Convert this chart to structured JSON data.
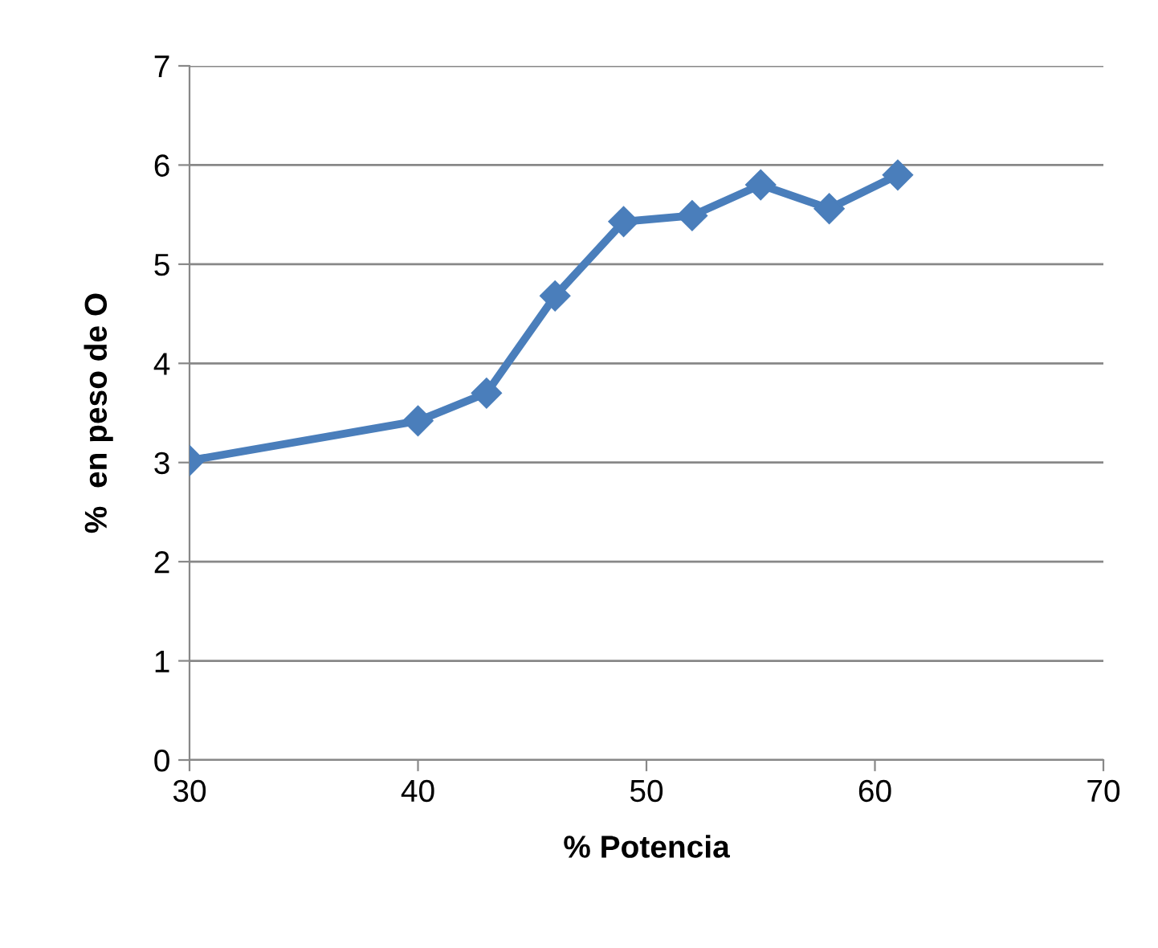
{
  "chart_data": {
    "type": "line",
    "xlabel": "% Potencia",
    "ylabel": "%  en peso de O",
    "series": [
      {
        "color": "#4a7ebb",
        "x": [
          30,
          40,
          43,
          46,
          49,
          52,
          55,
          58,
          61
        ],
        "values": [
          3.02,
          3.42,
          3.7,
          4.68,
          5.43,
          5.49,
          5.8,
          5.56,
          5.9
        ]
      }
    ],
    "xlim": [
      30,
      70
    ],
    "xticks": [
      30,
      40,
      50,
      60,
      70
    ],
    "ylim": [
      0,
      7
    ],
    "yticks": [
      0,
      1,
      2,
      3,
      4,
      5,
      6,
      7
    ],
    "grid": "y",
    "marker": "diamond",
    "line_style": "solid",
    "legend": false
  }
}
